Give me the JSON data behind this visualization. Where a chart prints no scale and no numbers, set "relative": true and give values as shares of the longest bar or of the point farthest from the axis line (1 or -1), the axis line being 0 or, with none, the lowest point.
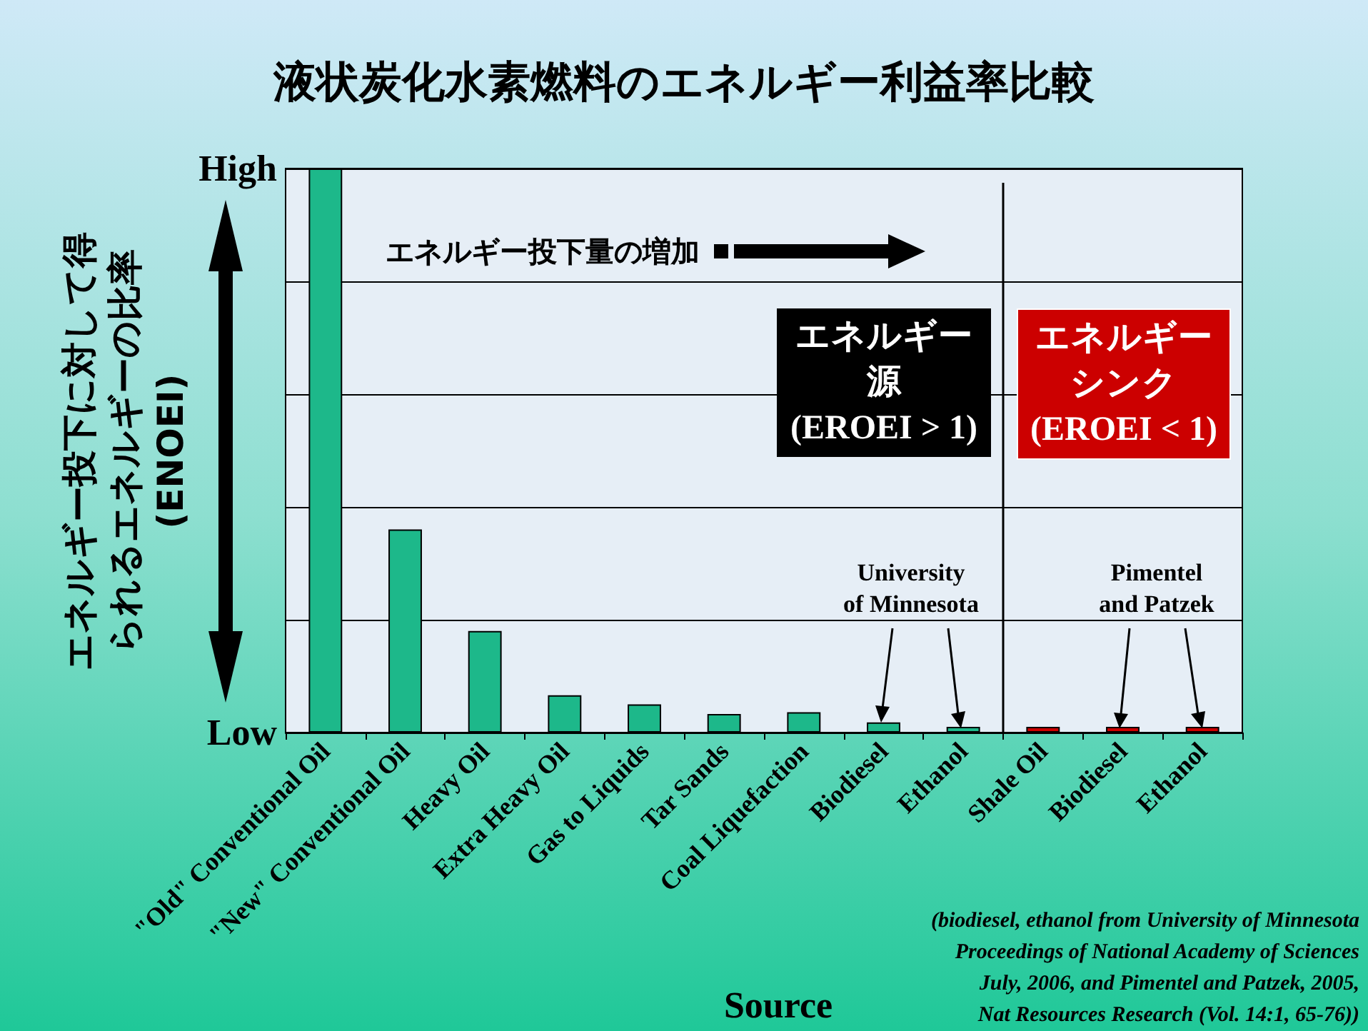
{
  "chart_data": {
    "type": "bar",
    "title": "液状炭化水素燃料のエネルギー利益率比較",
    "xlabel": "Source",
    "ylabel": "エネルギー投下に対して得られるエネルギーの比率\n(ENOEI)",
    "relative": true,
    "grid": "y",
    "categories": [
      "\"Old\" Conventional Oil",
      "\"New\" Conventional Oil",
      "Heavy Oil",
      "Extra Heavy Oil",
      "Gas to Liquids",
      "Tar Sands",
      "Coal Liquefaction",
      "Biodiesel",
      "Ethanol",
      "Shale Oil",
      "Biodiesel",
      "Ethanol"
    ],
    "values": [
      1,
      0.36,
      0.18,
      0.066,
      0.05,
      0.033,
      0.036,
      0.018,
      0.01,
      0.01,
      0.01,
      0.01
    ],
    "colors": [
      "#1db88a",
      "#1db88a",
      "#1db88a",
      "#1db88a",
      "#1db88a",
      "#1db88a",
      "#1db88a",
      "#1db88a",
      "#1db88a",
      "#cc0000",
      "#cc0000",
      "#cc0000"
    ],
    "annotations": [
      "High",
      "Low",
      "エネルギー投下量の増加",
      "エネルギー源\n(EROEI > 1)",
      "エネルギーシンク\n(EROEI < 1)",
      "University\nof Minnesota",
      "Pimentel\nand Patzek",
      "(biodiesel, ethanol from University of Minnesota\nProceedings of National Academy of Sciences\nJuly, 2006, and Pimentel and Patzek, 2005,\nNat Resources Research (Vol. 14:1, 65-76))"
    ]
  }
}
